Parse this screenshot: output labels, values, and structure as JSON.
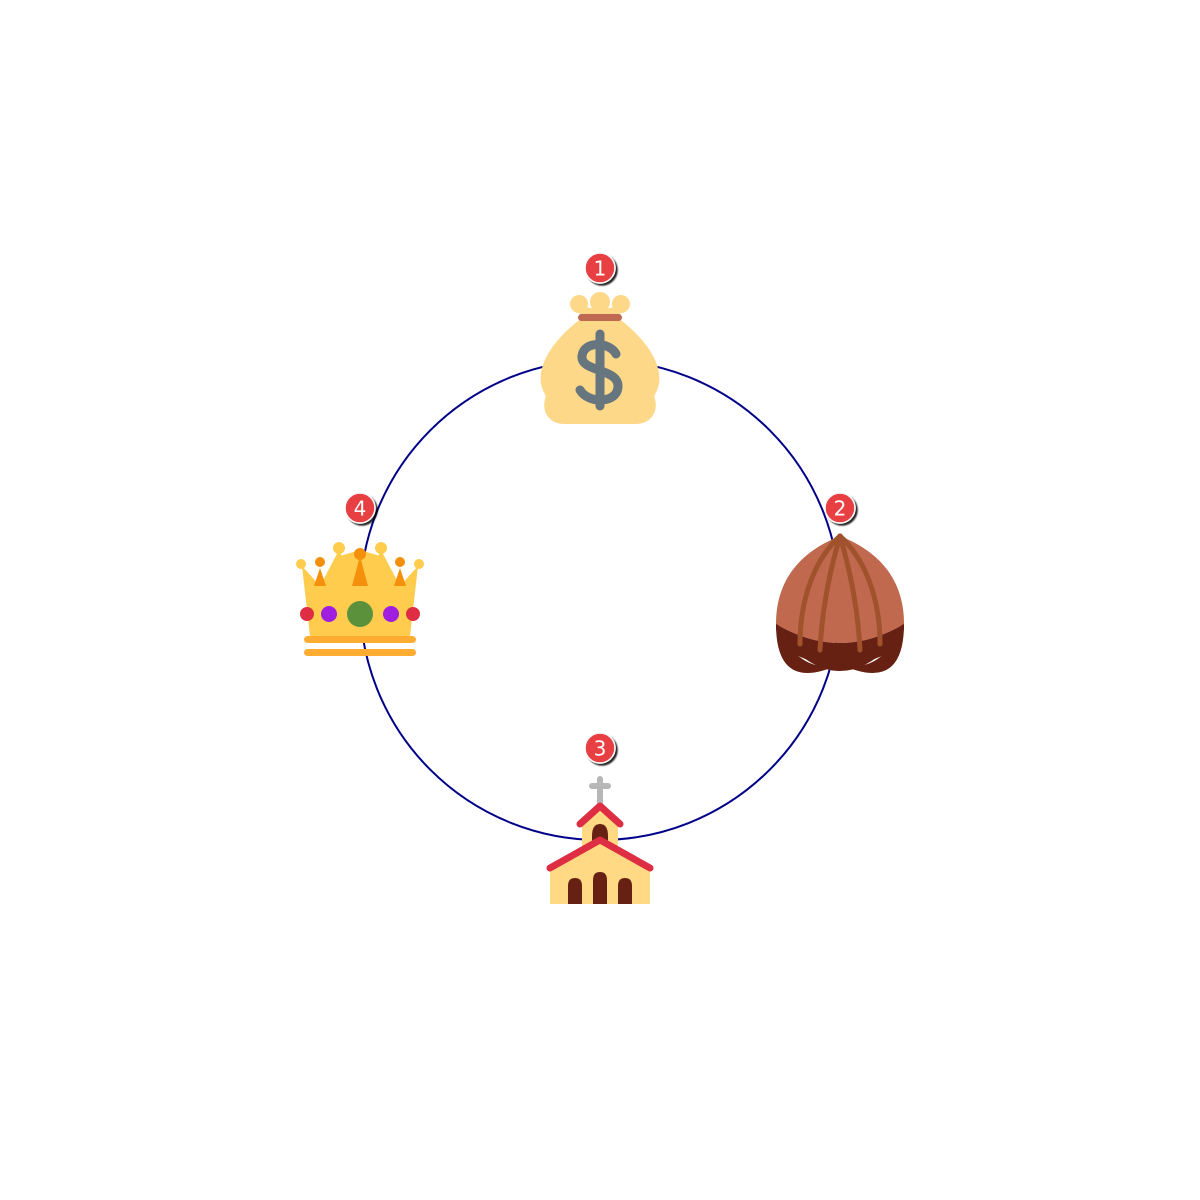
{
  "diagram": {
    "type": "cycle",
    "ring_color": "#00008b",
    "badge_color": "#e84142",
    "nodes": [
      {
        "number": "1",
        "icon": "money-bag-icon"
      },
      {
        "number": "2",
        "icon": "chestnut-icon"
      },
      {
        "number": "3",
        "icon": "church-icon"
      },
      {
        "number": "4",
        "icon": "crown-icon"
      }
    ]
  }
}
